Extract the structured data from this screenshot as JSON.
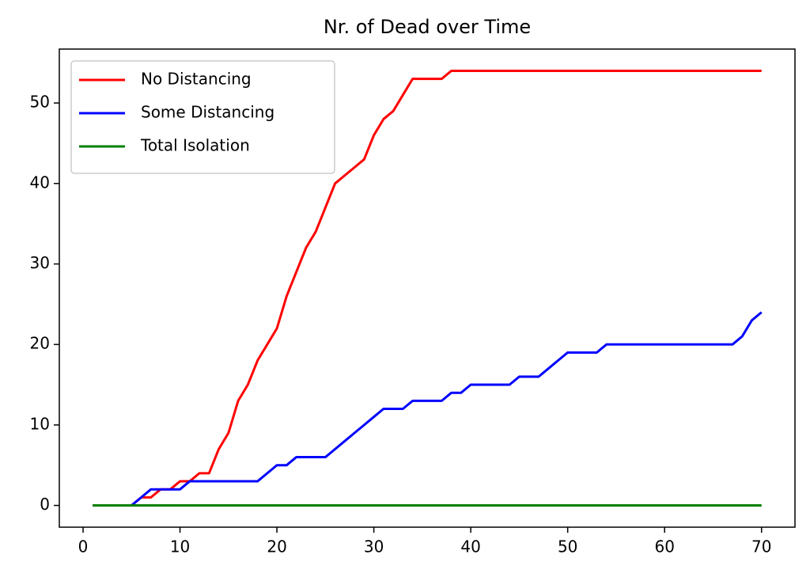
{
  "chart_data": {
    "type": "line",
    "title": "Nr. of Dead over Time",
    "x": [
      1,
      2,
      3,
      4,
      5,
      6,
      7,
      8,
      9,
      10,
      11,
      12,
      13,
      14,
      15,
      16,
      17,
      18,
      19,
      20,
      21,
      22,
      23,
      24,
      25,
      26,
      27,
      28,
      29,
      30,
      31,
      32,
      33,
      34,
      35,
      36,
      37,
      38,
      39,
      40,
      41,
      42,
      43,
      44,
      45,
      46,
      47,
      48,
      49,
      50,
      51,
      52,
      53,
      54,
      55,
      56,
      57,
      58,
      59,
      60,
      61,
      62,
      63,
      64,
      65,
      66,
      67,
      68,
      69,
      70
    ],
    "series": [
      {
        "name": "No Distancing",
        "color": "red",
        "values": [
          0,
          0,
          0,
          0,
          0,
          1,
          1,
          2,
          2,
          3,
          3,
          4,
          4,
          7,
          9,
          13,
          15,
          18,
          20,
          22,
          26,
          29,
          32,
          34,
          37,
          40,
          41,
          42,
          43,
          46,
          48,
          49,
          51,
          53,
          53,
          53,
          53,
          54,
          54,
          54,
          54,
          54,
          54,
          54,
          54,
          54,
          54,
          54,
          54,
          54,
          54,
          54,
          54,
          54,
          54,
          54,
          54,
          54,
          54,
          54,
          54,
          54,
          54,
          54,
          54,
          54,
          54,
          54,
          54,
          54
        ]
      },
      {
        "name": "Some Distancing",
        "color": "blue",
        "values": [
          0,
          0,
          0,
          0,
          0,
          1,
          2,
          2,
          2,
          2,
          3,
          3,
          3,
          3,
          3,
          3,
          3,
          3,
          4,
          5,
          5,
          6,
          6,
          6,
          6,
          7,
          8,
          9,
          10,
          11,
          12,
          12,
          12,
          13,
          13,
          13,
          13,
          14,
          14,
          15,
          15,
          15,
          15,
          15,
          16,
          16,
          16,
          17,
          18,
          19,
          19,
          19,
          19,
          20,
          20,
          20,
          20,
          20,
          20,
          20,
          20,
          20,
          20,
          20,
          20,
          20,
          20,
          21,
          23,
          24
        ]
      },
      {
        "name": "Total Isolation",
        "color": "green",
        "values": [
          0,
          0,
          0,
          0,
          0,
          0,
          0,
          0,
          0,
          0,
          0,
          0,
          0,
          0,
          0,
          0,
          0,
          0,
          0,
          0,
          0,
          0,
          0,
          0,
          0,
          0,
          0,
          0,
          0,
          0,
          0,
          0,
          0,
          0,
          0,
          0,
          0,
          0,
          0,
          0,
          0,
          0,
          0,
          0,
          0,
          0,
          0,
          0,
          0,
          0,
          0,
          0,
          0,
          0,
          0,
          0,
          0,
          0,
          0,
          0,
          0,
          0,
          0,
          0,
          0,
          0,
          0,
          0,
          0,
          0
        ]
      }
    ],
    "xlim": [
      -2.45,
      73.45
    ],
    "ylim": [
      -2.7,
      56.7
    ],
    "xticks": [
      0,
      10,
      20,
      30,
      40,
      50,
      60,
      70
    ],
    "yticks": [
      0,
      10,
      20,
      30,
      40,
      50
    ],
    "legend": "upper left",
    "grid": false
  }
}
